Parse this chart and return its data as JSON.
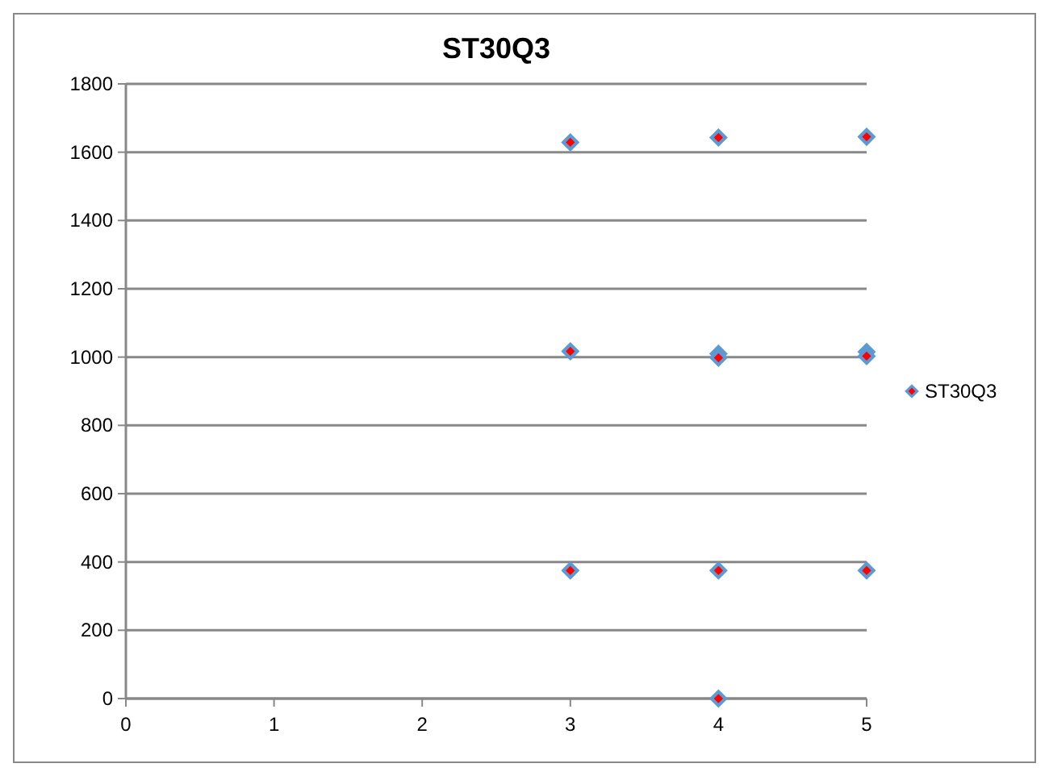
{
  "chart_data": {
    "type": "scatter",
    "title": "ST30Q3",
    "series": [
      {
        "name": "ST30Q3",
        "color": "#5b9bd5",
        "x": [
          3,
          3,
          3,
          4,
          4,
          4,
          4,
          4,
          5,
          5,
          5,
          5
        ],
        "values": [
          1629,
          1017,
          375,
          1643,
          1010,
          998,
          375,
          0,
          1645,
          1015,
          1003,
          375
        ]
      }
    ],
    "xlim": [
      0,
      5
    ],
    "xticks": [
      0,
      1,
      2,
      3,
      4,
      5
    ],
    "ylim": [
      0,
      1800
    ],
    "yticks": [
      0,
      200,
      400,
      600,
      800,
      1000,
      1200,
      1400,
      1600,
      1800
    ],
    "grid": "y",
    "legend": "right",
    "marker": "diamond"
  }
}
